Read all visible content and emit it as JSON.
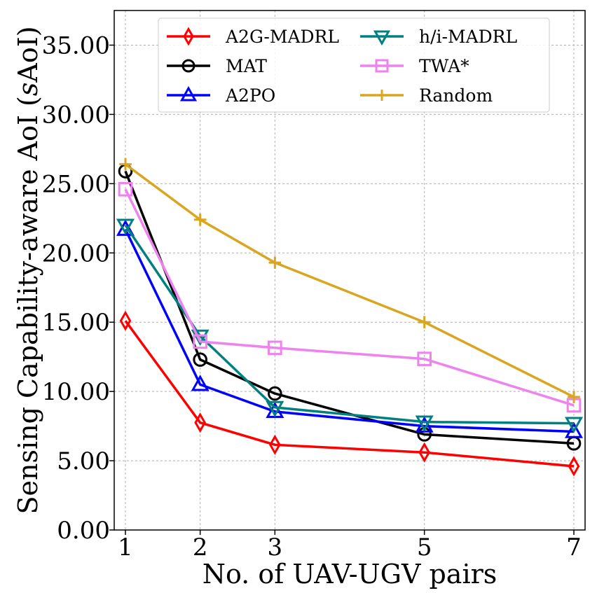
{
  "chart_data": {
    "type": "line",
    "xlabel": "No. of UAV-UGV pairs",
    "ylabel": "Sensing Capability-aware AoI (sAoI)",
    "ylabel_main": "Sensing Capability-aware AoI (",
    "ylabel_italic": "s",
    "ylabel_tail": "AoI)",
    "x": [
      1,
      2,
      3,
      5,
      7
    ],
    "x_tick_labels": [
      "1",
      "2",
      "3",
      "5",
      "7"
    ],
    "xlim": [
      0.85,
      7.15
    ],
    "ylim": [
      0,
      37.5
    ],
    "y_ticks": [
      0,
      5,
      10,
      15,
      20,
      25,
      30,
      35
    ],
    "y_tick_labels": [
      "0.00",
      "5.00",
      "10.00",
      "15.00",
      "20.00",
      "25.00",
      "30.00",
      "35.00"
    ],
    "grid": true,
    "legend_position": "top-right",
    "legend_columns": 2,
    "series": [
      {
        "name": "A2G-MADRL",
        "color": "#ff0000",
        "marker": "thin_diamond",
        "values": [
          15.1,
          7.75,
          6.15,
          5.6,
          4.6
        ]
      },
      {
        "name": "MAT",
        "color": "#000000",
        "marker": "circle",
        "values": [
          25.9,
          12.3,
          9.85,
          6.9,
          6.25
        ]
      },
      {
        "name": "A2PO",
        "color": "#0000ff",
        "marker": "triangle_up",
        "values": [
          21.7,
          10.5,
          8.55,
          7.5,
          7.1
        ]
      },
      {
        "name": "h/i-MADRL",
        "color": "#008080",
        "marker": "triangle_down",
        "values": [
          22.0,
          14.0,
          8.85,
          7.8,
          7.7
        ]
      },
      {
        "name": "TWA*",
        "color": "#ee82ee",
        "marker": "square",
        "values": [
          24.6,
          13.6,
          13.15,
          12.35,
          9.0
        ]
      },
      {
        "name": "Random",
        "color": "#daa520",
        "marker": "plus",
        "values": [
          26.4,
          22.4,
          19.3,
          15.0,
          9.6
        ]
      }
    ]
  }
}
